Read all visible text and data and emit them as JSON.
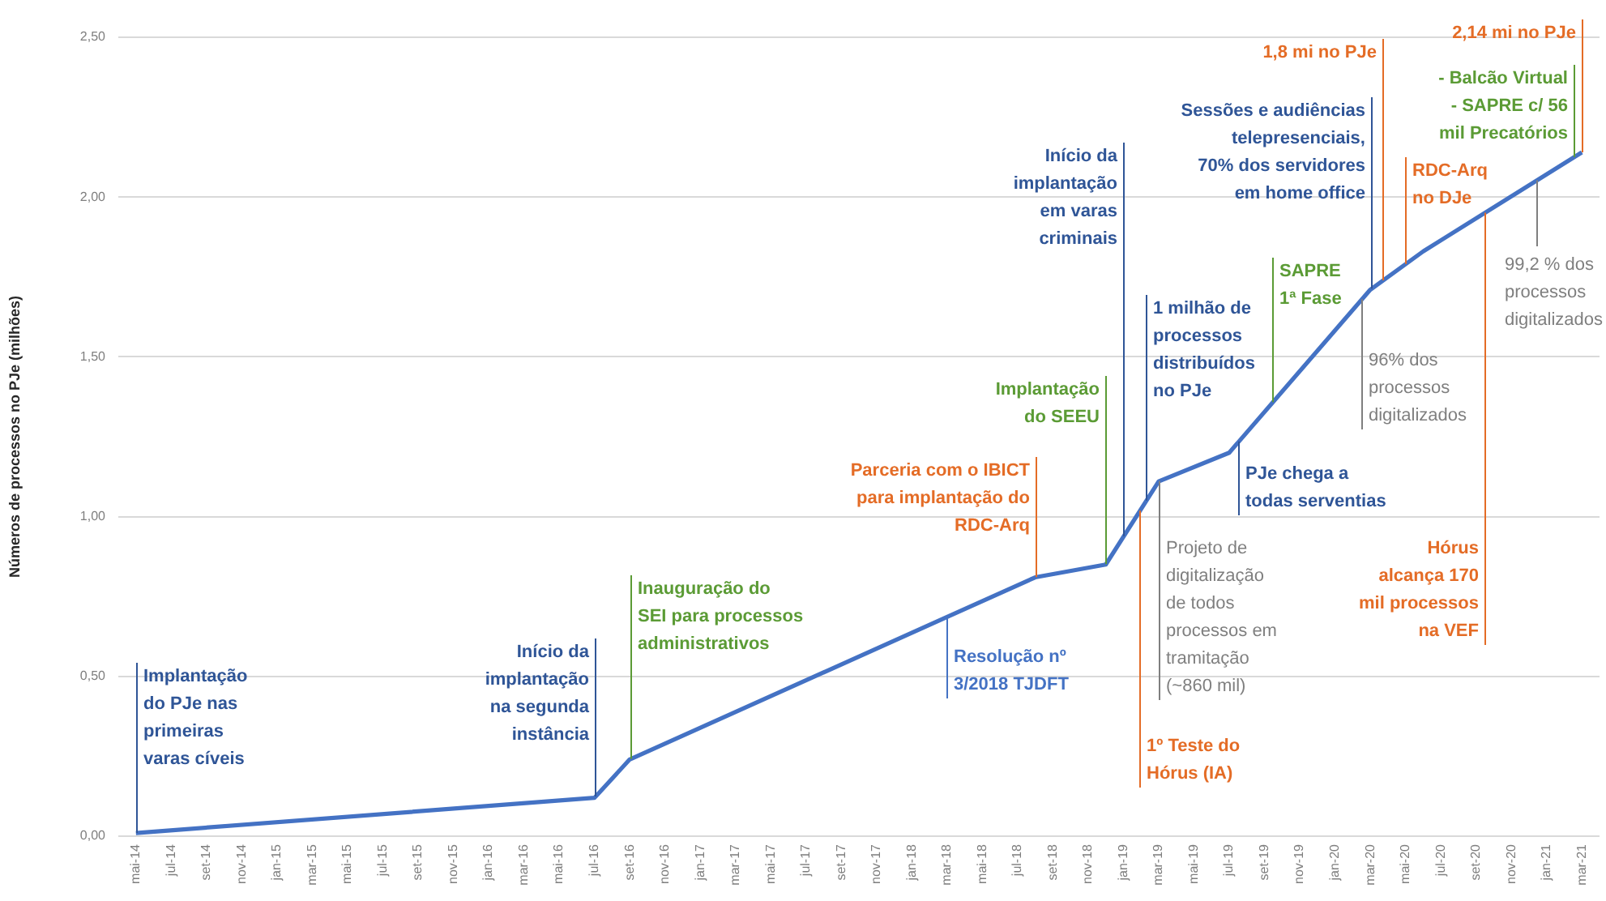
{
  "chart_data": {
    "type": "line",
    "ylabel": "Números de processos no PJe (milhões)",
    "x": [
      "2014-05",
      "2016-07",
      "2016-09",
      "2018-08",
      "2018-12",
      "2019-03",
      "2019-07",
      "2020-03",
      "2020-06",
      "2021-03"
    ],
    "series": [
      {
        "color": "#4472c4",
        "values": [
          0.01,
          0.12,
          0.24,
          0.81,
          0.85,
          1.11,
          1.2,
          1.71,
          1.83,
          2.14
        ]
      }
    ],
    "xlim": [
      "2014-04",
      "2021-04"
    ],
    "xticks": [
      {
        "value": "2014-05",
        "label": "mai-14"
      },
      {
        "value": "2014-07",
        "label": "jul-14"
      },
      {
        "value": "2014-09",
        "label": "set-14"
      },
      {
        "value": "2014-11",
        "label": "nov-14"
      },
      {
        "value": "2015-01",
        "label": "jan-15"
      },
      {
        "value": "2015-03",
        "label": "mar-15"
      },
      {
        "value": "2015-05",
        "label": "mai-15"
      },
      {
        "value": "2015-07",
        "label": "jul-15"
      },
      {
        "value": "2015-09",
        "label": "set-15"
      },
      {
        "value": "2015-11",
        "label": "nov-15"
      },
      {
        "value": "2016-01",
        "label": "jan-16"
      },
      {
        "value": "2016-03",
        "label": "mar-16"
      },
      {
        "value": "2016-05",
        "label": "mai-16"
      },
      {
        "value": "2016-07",
        "label": "jul-16"
      },
      {
        "value": "2016-09",
        "label": "set-16"
      },
      {
        "value": "2016-11",
        "label": "nov-16"
      },
      {
        "value": "2017-01",
        "label": "jan-17"
      },
      {
        "value": "2017-03",
        "label": "mar-17"
      },
      {
        "value": "2017-05",
        "label": "mai-17"
      },
      {
        "value": "2017-07",
        "label": "jul-17"
      },
      {
        "value": "2017-09",
        "label": "set-17"
      },
      {
        "value": "2017-11",
        "label": "nov-17"
      },
      {
        "value": "2018-01",
        "label": "jan-18"
      },
      {
        "value": "2018-03",
        "label": "mar-18"
      },
      {
        "value": "2018-05",
        "label": "mai-18"
      },
      {
        "value": "2018-07",
        "label": "jul-18"
      },
      {
        "value": "2018-09",
        "label": "set-18"
      },
      {
        "value": "2018-11",
        "label": "nov-18"
      },
      {
        "value": "2019-01",
        "label": "jan-19"
      },
      {
        "value": "2019-03",
        "label": "mar-19"
      },
      {
        "value": "2019-05",
        "label": "mai-19"
      },
      {
        "value": "2019-07",
        "label": "jul-19"
      },
      {
        "value": "2019-09",
        "label": "set-19"
      },
      {
        "value": "2019-11",
        "label": "nov-19"
      },
      {
        "value": "2020-01",
        "label": "jan-20"
      },
      {
        "value": "2020-03",
        "label": "mar-20"
      },
      {
        "value": "2020-05",
        "label": "mai-20"
      },
      {
        "value": "2020-07",
        "label": "jul-20"
      },
      {
        "value": "2020-09",
        "label": "set-20"
      },
      {
        "value": "2020-11",
        "label": "nov-20"
      },
      {
        "value": "2021-01",
        "label": "jan-21"
      },
      {
        "value": "2021-03",
        "label": "mar-21"
      }
    ],
    "ylim": [
      0,
      2.5
    ],
    "yticks": [
      {
        "value": 0,
        "label": "0,00"
      },
      {
        "value": 0.5,
        "label": "0,50"
      },
      {
        "value": 1,
        "label": "1,00"
      },
      {
        "value": 1.5,
        "label": "1,50"
      },
      {
        "value": 2,
        "label": "2,00"
      },
      {
        "value": 2.5,
        "label": "2,50"
      }
    ],
    "grid": "y",
    "legend": false,
    "ref_lines": [
      {
        "axis": "x",
        "value": "2014-05",
        "label": "Implantação do PJe nas primeiras varas cíveis",
        "color": "#2f5597"
      },
      {
        "axis": "x",
        "value": "2016-07",
        "label": "Início da implantação na segunda instância",
        "color": "#2f5597"
      },
      {
        "axis": "x",
        "value": "2016-09",
        "label": "Inauguração do SEI para processos administrativos",
        "color": "#5b9b35"
      },
      {
        "axis": "x",
        "value": "2018-03",
        "label": "Resolução nº 3/2018 TJDFT",
        "color": "#4472c4"
      },
      {
        "axis": "x",
        "value": "2018-08",
        "label": "Parceria com o IBICT para implantação do RDC-Arq",
        "color": "#e46c26"
      },
      {
        "axis": "x",
        "value": "2018-12",
        "label": "Implantação do SEEU",
        "color": "#5b9b35"
      },
      {
        "axis": "x",
        "value": "2019-01",
        "label": "Início da implantação em varas criminais",
        "color": "#2f5597"
      },
      {
        "axis": "x",
        "value": "2019-01-28",
        "label": "1º Teste do Hórus (IA)",
        "color": "#e46c26"
      },
      {
        "axis": "x",
        "value": "2019-02-10",
        "label": "1 milhão de processos distribuídos no PJe",
        "color": "#2f5597"
      },
      {
        "axis": "x",
        "value": "2019-03",
        "label": "Projeto de digitalização de todos processos em tramitação (~860 mil)",
        "color": "#7f7f7f"
      },
      {
        "axis": "x",
        "value": "2019-07-15",
        "label": "PJe chega a todas serventias",
        "color": "#2f5597"
      },
      {
        "axis": "x",
        "value": "2019-09-15",
        "label": "SAPRE 1ª Fase",
        "color": "#5b9b35"
      },
      {
        "axis": "x",
        "value": "2020-03",
        "label": "Sessões e audiências telepresenciais, 70% dos servidores em home office",
        "color": "#2f5597"
      },
      {
        "axis": "x",
        "value": "2020-02-15",
        "label": "96% dos processos digitalizados",
        "color": "#7f7f7f"
      },
      {
        "axis": "x",
        "value": "2020-03-22",
        "label": "1,8 mi no PJe",
        "color": "#e46c26"
      },
      {
        "axis": "x",
        "value": "2020-05",
        "label": "RDC-Arq no DJe",
        "color": "#e46c26"
      },
      {
        "axis": "x",
        "value": "2020-09-15",
        "label": "Hórus alcança 170 mil processos na VEF",
        "color": "#e46c26"
      },
      {
        "axis": "x",
        "value": "2020-12-15",
        "label": "99,2 % dos processos digitalizados",
        "color": "#7f7f7f"
      },
      {
        "axis": "x",
        "value": "2021-02-18",
        "label": "- Balcão Virtual - SAPRE c/ 56 mil Precatórios",
        "color": "#5b9b35"
      },
      {
        "axis": "x",
        "value": "2021-03",
        "label": "2,14 mi no PJe",
        "color": "#e46c26"
      }
    ]
  }
}
